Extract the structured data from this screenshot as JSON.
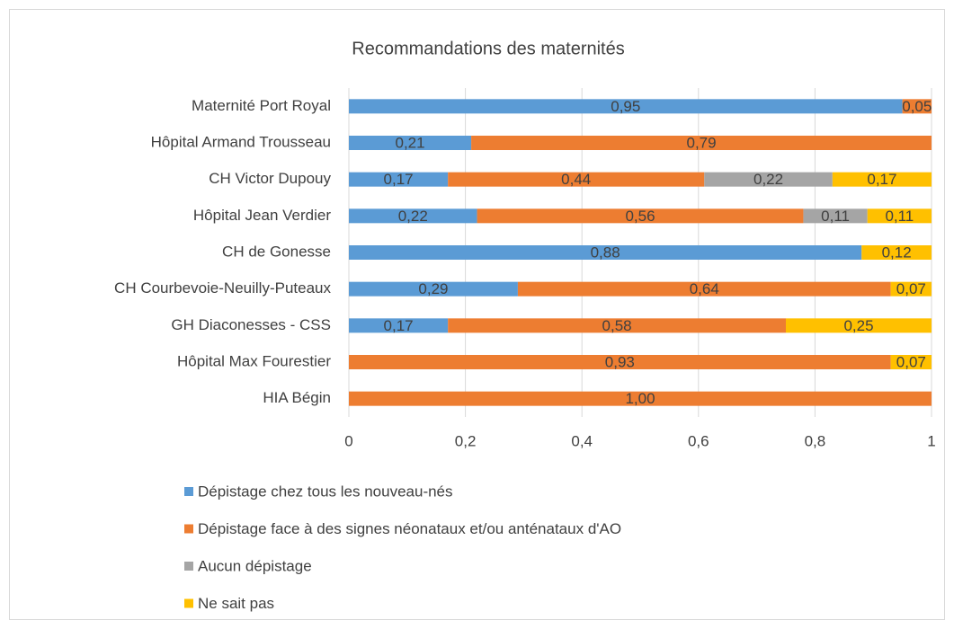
{
  "chart_data": {
    "type": "stacked_barh",
    "title": "Recommandations des maternités",
    "categories": [
      "Maternité Port Royal",
      "Hôpital Armand Trousseau",
      "CH Victor Dupouy",
      "Hôpital Jean Verdier",
      "CH de Gonesse",
      "CH Courbevoie-Neuilly-Puteaux",
      "GH Diaconesses - CSS",
      "Hôpital Max Fourestier",
      "HIA Bégin"
    ],
    "series": [
      {
        "name": "Dépistage chez tous les nouveau-nés",
        "color": "#5b9bd5",
        "values": [
          0.95,
          0.21,
          0.17,
          0.22,
          0.88,
          0.29,
          0.17,
          null,
          null
        ],
        "value_labels": [
          "0,95",
          "0,21",
          "0,17",
          "0,22",
          "0,88",
          "0,29",
          "0,17",
          null,
          null
        ]
      },
      {
        "name": "Dépistage face à des signes néonataux et/ou anténataux d'AO",
        "color": "#ed7d31",
        "values": [
          0.05,
          0.79,
          0.44,
          0.56,
          null,
          0.64,
          0.58,
          0.93,
          1
        ],
        "value_labels": [
          "0,05",
          "0,79",
          "0,44",
          "0,56",
          null,
          "0,64",
          "0,58",
          "0,93",
          "1,00"
        ]
      },
      {
        "name": "Aucun dépistage",
        "color": "#a5a5a5",
        "values": [
          null,
          null,
          0.22,
          0.11,
          null,
          null,
          null,
          null,
          null
        ],
        "value_labels": [
          null,
          null,
          "0,22",
          "0,11",
          null,
          null,
          null,
          null,
          null
        ]
      },
      {
        "name": "Ne sait pas",
        "color": "#ffc000",
        "values": [
          null,
          null,
          0.17,
          0.11,
          0.12,
          0.07,
          0.25,
          0.07,
          null
        ],
        "value_labels": [
          null,
          null,
          "0,17",
          "0,11",
          "0,12",
          "0,07",
          "0,25",
          "0,07",
          null
        ]
      }
    ],
    "xlim": [
      0,
      1
    ],
    "xticks": [
      0,
      {
        "value": 0.2,
        "label": "0,2"
      },
      {
        "value": 0.4,
        "label": "0,4"
      },
      {
        "value": 0.6,
        "label": "0,6"
      },
      {
        "value": 0.8,
        "label": "0,8"
      },
      1
    ],
    "grid": true,
    "legend": "bottom"
  }
}
